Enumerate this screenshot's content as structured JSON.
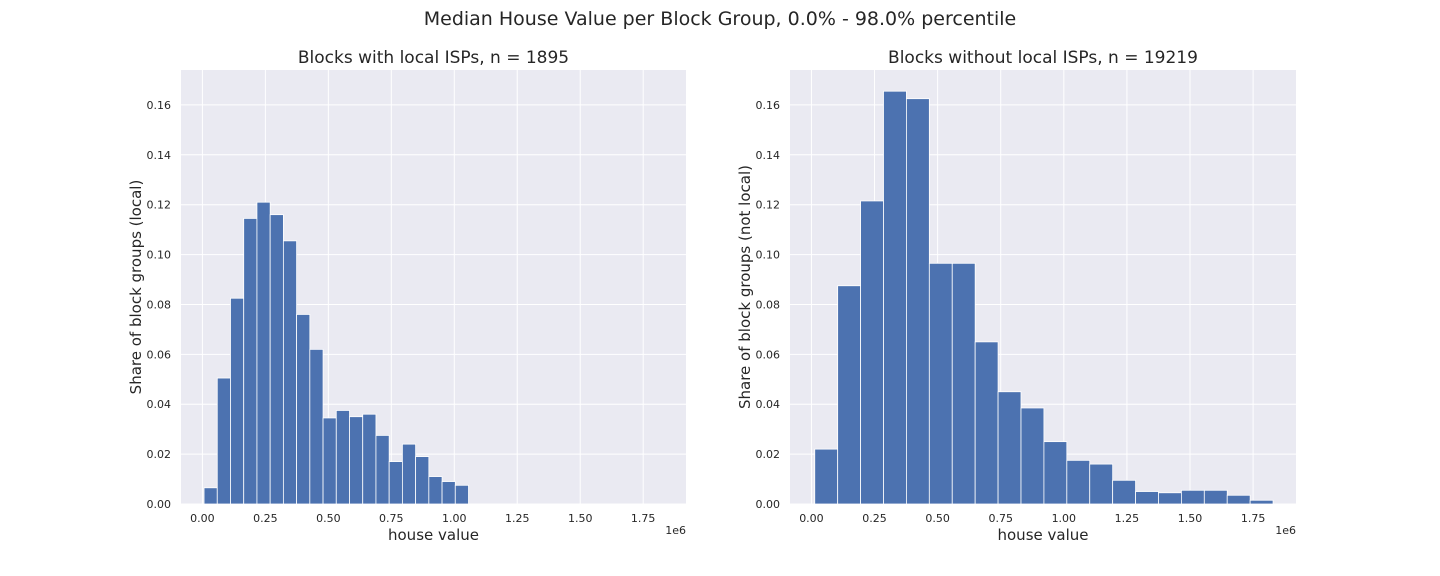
{
  "suptitle": "Median House Value per Block Group, 0.0% - 98.0% percentile",
  "colors": {
    "bar": "#4c72b0",
    "axes_bg": "#eaeaf2",
    "grid": "#ffffff",
    "text": "#262626"
  },
  "chart_data": [
    {
      "type": "bar",
      "title": "Blocks with local ISPs, n = 1895",
      "xlabel": "house value",
      "ylabel": "Share of block groups (local)",
      "x_offset_label": "1e6",
      "xlim": [
        -0.085,
        1.92
      ],
      "ylim": [
        0,
        0.174
      ],
      "xticks": [
        0.0,
        0.25,
        0.5,
        0.75,
        1.0,
        1.25,
        1.5,
        1.75
      ],
      "xtick_labels": [
        "0.00",
        "0.25",
        "0.50",
        "0.75",
        "1.00",
        "1.25",
        "1.50",
        "1.75"
      ],
      "yticks": [
        0.0,
        0.02,
        0.04,
        0.06,
        0.08,
        0.1,
        0.12,
        0.14,
        0.16
      ],
      "ytick_labels": [
        "0.00",
        "0.02",
        "0.04",
        "0.06",
        "0.08",
        "0.10",
        "0.12",
        "0.14",
        "0.16"
      ],
      "grid": true,
      "bin_start": 0.0065,
      "bin_width": 0.0525,
      "values": [
        0.0065,
        0.0505,
        0.0825,
        0.1145,
        0.121,
        0.116,
        0.1055,
        0.076,
        0.062,
        0.0345,
        0.0375,
        0.035,
        0.036,
        0.0275,
        0.017,
        0.024,
        0.019,
        0.011,
        0.009,
        0.0075
      ]
    },
    {
      "type": "bar",
      "title": "Blocks without local ISPs, n = 19219",
      "xlabel": "house value",
      "ylabel": "Share of block groups (not local)",
      "x_offset_label": "1e6",
      "xlim": [
        -0.085,
        1.92
      ],
      "ylim": [
        0,
        0.174
      ],
      "xticks": [
        0.0,
        0.25,
        0.5,
        0.75,
        1.0,
        1.25,
        1.5,
        1.75
      ],
      "xtick_labels": [
        "0.00",
        "0.25",
        "0.50",
        "0.75",
        "1.00",
        "1.25",
        "1.50",
        "1.75"
      ],
      "yticks": [
        0.0,
        0.02,
        0.04,
        0.06,
        0.08,
        0.1,
        0.12,
        0.14,
        0.16
      ],
      "ytick_labels": [
        "0.00",
        "0.02",
        "0.04",
        "0.06",
        "0.08",
        "0.10",
        "0.12",
        "0.14",
        "0.16"
      ],
      "grid": true,
      "bin_start": 0.0131,
      "bin_width": 0.0908,
      "values": [
        0.022,
        0.0875,
        0.1215,
        0.1655,
        0.1625,
        0.0965,
        0.0965,
        0.065,
        0.045,
        0.0385,
        0.025,
        0.0175,
        0.016,
        0.0095,
        0.005,
        0.0045,
        0.0055,
        0.0055,
        0.0035,
        0.0015
      ]
    }
  ]
}
